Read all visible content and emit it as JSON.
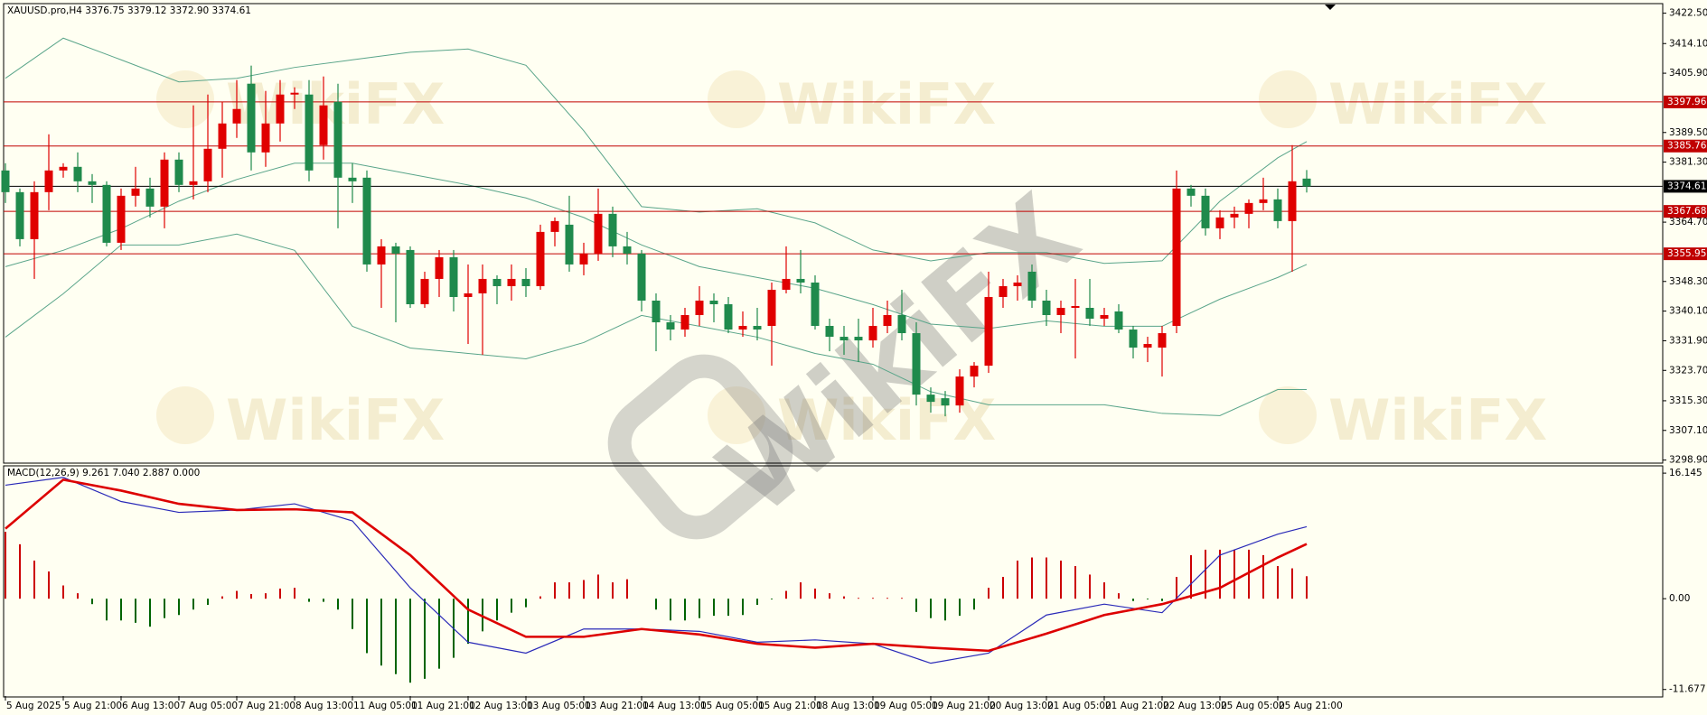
{
  "chart_data": [
    {
      "type": "candlestick",
      "title": "XAUUSD.pro,H4  3376.75 3379.12 3372.90 3374.61",
      "watermark": "WikiFX",
      "up_color": "#e00000",
      "down_color": "#1f8a4c",
      "open": [
        3379,
        3373,
        3360,
        3373,
        3379,
        3380,
        3376,
        3375,
        3359,
        3372,
        3374,
        3369,
        3382,
        3375,
        3376,
        3385,
        3392,
        3403,
        3384,
        3392,
        3400,
        3400,
        3386,
        3398,
        3377,
        3377,
        3353,
        3358,
        3357,
        3342,
        3349,
        3355,
        3344,
        3345,
        3349,
        3347,
        3349,
        3347,
        3362,
        3364,
        3353,
        3356,
        3367,
        3358,
        3356,
        3343,
        3337,
        3335,
        3339,
        3343,
        3342,
        3335,
        3336,
        3336,
        3346,
        3349,
        3348,
        3336,
        3333,
        3333,
        3332,
        3336,
        3339,
        3334,
        3317,
        3316,
        3314,
        3322,
        3325,
        3344,
        3347,
        3351,
        3343,
        3339,
        3341,
        3341,
        3338,
        3340,
        3335,
        3330,
        3330,
        3336,
        3374,
        3372,
        3363,
        3366,
        3367,
        3370,
        3371,
        3365,
        3376.75
      ],
      "high": [
        3381,
        3374,
        3376,
        3389,
        3381,
        3384,
        3378,
        3376,
        3374,
        3380,
        3377,
        3384,
        3384,
        3397,
        3400,
        3398,
        3404,
        3408,
        3401,
        3404,
        3402,
        3404,
        3405,
        3403,
        3381,
        3379,
        3360,
        3359,
        3358,
        3351,
        3357,
        3357,
        3353,
        3353,
        3350,
        3353,
        3352,
        3364,
        3366,
        3372,
        3359,
        3374,
        3369,
        3362,
        3357,
        3345,
        3339,
        3341,
        3347,
        3345,
        3344,
        3340,
        3341,
        3348,
        3358,
        3357,
        3350,
        3338,
        3336,
        3338,
        3341,
        3343,
        3346,
        3337,
        3319,
        3318,
        3324,
        3326,
        3351,
        3349,
        3350,
        3353,
        3346,
        3343,
        3349,
        3349,
        3341,
        3342,
        3336,
        3333,
        3336,
        3379,
        3375,
        3374,
        3368,
        3369,
        3371,
        3377,
        3374,
        3386,
        3379.12
      ],
      "low": [
        3370,
        3358,
        3349,
        3368,
        3377,
        3373,
        3370,
        3358,
        3357,
        3369,
        3366,
        3363,
        3373,
        3371,
        3373,
        3377,
        3388,
        3379,
        3380,
        3387,
        3396,
        3376,
        3382,
        3363,
        3370,
        3351,
        3341,
        3337,
        3341,
        3341,
        3344,
        3340,
        3331,
        3328,
        3342,
        3343,
        3344,
        3346,
        3358,
        3351,
        3350,
        3354,
        3355,
        3353,
        3340,
        3329,
        3332,
        3333,
        3336,
        3337,
        3334,
        3333,
        3332,
        3325,
        3345,
        3345,
        3335,
        3329,
        3328,
        3326,
        3330,
        3334,
        3332,
        3314,
        3312,
        3311,
        3312,
        3319,
        3323,
        3341,
        3343,
        3341,
        3336,
        3334,
        3327,
        3336,
        3336,
        3334,
        3327,
        3326,
        3322,
        3334,
        3369,
        3361,
        3360,
        3363,
        3363,
        3368,
        3363,
        3351,
        3372.9
      ],
      "close": [
        3373,
        3360,
        3373,
        3379,
        3380,
        3376,
        3375,
        3359,
        3372,
        3374,
        3369,
        3382,
        3375,
        3376,
        3385,
        3392,
        3396,
        3384,
        3392,
        3400,
        3400.5,
        3379,
        3397,
        3377,
        3376,
        3353,
        3358,
        3356,
        3342,
        3349,
        3355,
        3344,
        3345,
        3349,
        3347,
        3349,
        3347,
        3362,
        3365,
        3353,
        3356,
        3367,
        3358,
        3356,
        3343,
        3337,
        3335,
        3339,
        3343,
        3342,
        3335,
        3336,
        3335,
        3346,
        3349,
        3348,
        3336,
        3333,
        3332,
        3332,
        3336,
        3339,
        3334,
        3317,
        3315,
        3314,
        3322,
        3325,
        3344,
        3347,
        3348,
        3343,
        3339,
        3341,
        3341.5,
        3338,
        3339,
        3335,
        3330,
        3331,
        3334,
        3374,
        3372,
        3363,
        3366,
        3367,
        3370,
        3371,
        3365,
        3376,
        3374.61
      ],
      "bands": [
        {
          "color": "#5aa58a",
          "x": [
            0,
            4,
            8,
            12,
            16,
            20,
            24,
            28,
            32,
            36,
            40,
            44,
            48,
            52,
            56,
            60,
            64,
            68,
            72,
            76,
            80,
            84,
            88,
            90
          ],
          "values": [
            3404.5,
            3415.6,
            3409.6,
            3403.5,
            3404.5,
            3407.5,
            3409.6,
            3411.7,
            3412.6,
            3408.1,
            3390,
            3369,
            3367.5,
            3368.4,
            3364.5,
            3357,
            3354,
            3356.3,
            3356.3,
            3353.3,
            3354,
            3370.5,
            3382.5,
            3387
          ]
        },
        {
          "color": "#5aa58a",
          "x": [
            0,
            4,
            8,
            12,
            16,
            20,
            24,
            28,
            32,
            36,
            40,
            44,
            48,
            52,
            56,
            60,
            64,
            68,
            72,
            76,
            80,
            84,
            88,
            90
          ],
          "values": [
            3352.4,
            3356.9,
            3362.9,
            3370.5,
            3376.5,
            3381,
            3381,
            3378,
            3375,
            3371.4,
            3366,
            3358.4,
            3352.4,
            3349.4,
            3346.4,
            3341.9,
            3336.5,
            3335.3,
            3337.4,
            3335.9,
            3335.9,
            3343.4,
            3349.4,
            3353
          ]
        },
        {
          "color": "#5aa58a",
          "x": [
            0,
            4,
            8,
            12,
            16,
            20,
            24,
            28,
            32,
            36,
            40,
            44,
            48,
            52,
            56,
            60,
            64,
            68,
            72,
            76,
            80,
            84,
            88,
            90
          ],
          "values": [
            3332.9,
            3344.9,
            3358.4,
            3358.4,
            3361.4,
            3356.9,
            3335.9,
            3329.9,
            3328.4,
            3326.9,
            3331.4,
            3338.9,
            3335.9,
            3332.9,
            3328.4,
            3325.4,
            3317.8,
            3314.2,
            3314.2,
            3314.2,
            3311.8,
            3311.2,
            3318.4,
            3318.4
          ]
        }
      ],
      "levels": [
        {
          "value": 3397.96,
          "color": "#c00000"
        },
        {
          "value": 3385.76,
          "color": "#c00000"
        },
        {
          "value": 3374.61,
          "color": "#000000"
        },
        {
          "value": 3367.68,
          "color": "#c00000"
        },
        {
          "value": 3355.95,
          "color": "#c00000"
        }
      ],
      "ylim": [
        3298.3,
        3424.9
      ],
      "yticks": [
        {
          "value": 3422.5,
          "label": "3422.50"
        },
        {
          "value": 3414.1,
          "label": "3414.10"
        },
        {
          "value": 3405.9,
          "label": "3405.90"
        },
        {
          "value": 3389.5,
          "label": "3389.50"
        },
        {
          "value": 3381.3,
          "label": "3381.30"
        },
        {
          "value": 3364.7,
          "label": "3364.70"
        },
        {
          "value": 3348.3,
          "label": "3348.30"
        },
        {
          "value": 3340.1,
          "label": "3340.10"
        },
        {
          "value": 3331.9,
          "label": "3331.90"
        },
        {
          "value": 3323.7,
          "label": "3323.70"
        },
        {
          "value": 3315.3,
          "label": "3315.30"
        },
        {
          "value": 3307.1,
          "label": "3307.10"
        },
        {
          "value": 3298.9,
          "label": "3298.90"
        }
      ]
    },
    {
      "type": "macd",
      "title": "MACD(12,26,9) 9.261 7.040 2.887 0.000",
      "categories": [
        "5 Aug 2025",
        null,
        null,
        null,
        "5 Aug 21:00",
        null,
        null,
        null,
        "6 Aug 13:00",
        null,
        null,
        null,
        "7 Aug 05:00",
        null,
        null,
        null,
        "7 Aug 21:00",
        null,
        null,
        null,
        "8 Aug 13:00",
        null,
        null,
        null,
        "11 Aug 05:00",
        null,
        null,
        null,
        "11 Aug 21:00",
        null,
        null,
        null,
        "12 Aug 13:00",
        null,
        null,
        null,
        "13 Aug 05:00",
        null,
        null,
        null,
        "13 Aug 21:00",
        null,
        null,
        null,
        "14 Aug 13:00",
        null,
        null,
        null,
        "15 Aug 05:00",
        null,
        null,
        null,
        "15 Aug 21:00",
        null,
        null,
        null,
        "18 Aug 13:00",
        null,
        null,
        null,
        "19 Aug 05:00",
        null,
        null,
        null,
        "19 Aug 21:00",
        null,
        null,
        null,
        "20 Aug 13:00",
        null,
        null,
        null,
        "21 Aug 05:00",
        null,
        null,
        null,
        "21 Aug 21:00",
        null,
        null,
        null,
        "22 Aug 13:00",
        null,
        null,
        null,
        "25 Aug 05:00",
        null,
        null,
        null,
        "25 Aug 21:00",
        null,
        null
      ],
      "histogram": [
        8.6,
        7.0,
        4.9,
        3.5,
        1.7,
        0.7,
        -0.7,
        -2.8,
        -2.8,
        -3.1,
        -3.6,
        -2.5,
        -2.1,
        -1.4,
        -0.8,
        0.3,
        1.0,
        0.6,
        0.7,
        1.3,
        1.4,
        -0.4,
        -0.4,
        -1.4,
        -3.9,
        -7.0,
        -8.6,
        -9.7,
        -10.8,
        -10.3,
        -9.0,
        -7.6,
        -5.8,
        -4.2,
        -2.8,
        -1.8,
        -1.1,
        0.3,
        2.1,
        2.1,
        2.4,
        3.1,
        2.1,
        2.5,
        0,
        -1.4,
        -2.8,
        -2.8,
        -2.5,
        -2.2,
        -2.2,
        -2.1,
        -0.8,
        -0.1,
        1.0,
        2.1,
        1.3,
        0.7,
        0.3,
        0.1,
        0.1,
        0.1,
        0.1,
        -1.7,
        -2.5,
        -2.8,
        -2.2,
        -1.4,
        1.4,
        2.8,
        4.9,
        5.3,
        5.3,
        4.9,
        4.2,
        3.1,
        2.1,
        0.7,
        -0.3,
        -0.1,
        -0.3,
        2.8,
        5.6,
        6.3,
        6.3,
        6.3,
        6.3,
        5.6,
        4.2,
        3.9,
        2.887
      ],
      "positive_color": "#cc0000",
      "negative_color": "#006400",
      "main": {
        "color": "#2a2ab8",
        "x": [
          0,
          4,
          8,
          12,
          16,
          20,
          24,
          28,
          32,
          36,
          40,
          44,
          48,
          52,
          56,
          60,
          64,
          68,
          72,
          76,
          80,
          84,
          88,
          90
        ],
        "values": [
          14.6,
          15.6,
          12.5,
          11.1,
          11.4,
          12.2,
          10,
          1.4,
          -5.6,
          -7,
          -3.9,
          -3.9,
          -4.2,
          -5.6,
          -5.3,
          -5.8,
          -8.3,
          -7,
          -2.1,
          -0.7,
          -1.8,
          5.6,
          8.3,
          9.261
        ]
      },
      "signal": {
        "color": "#dd0000",
        "x": [
          0,
          4,
          8,
          12,
          16,
          20,
          24,
          28,
          32,
          36,
          40,
          44,
          48,
          52,
          56,
          60,
          64,
          68,
          72,
          76,
          80,
          84,
          88,
          90
        ],
        "values": [
          9,
          15.3,
          13.9,
          12.2,
          11.4,
          11.5,
          11.1,
          5.6,
          -1.4,
          -4.9,
          -4.9,
          -3.9,
          -4.6,
          -5.8,
          -6.3,
          -5.8,
          -6.3,
          -6.7,
          -4.5,
          -2.1,
          -0.7,
          1.4,
          5.3,
          7.04
        ]
      },
      "ylim": [
        -12.52,
        16.97
      ],
      "yticks": [
        16.145,
        {
          "value": 0,
          "label": "0.00"
        },
        -11.677
      ]
    }
  ]
}
